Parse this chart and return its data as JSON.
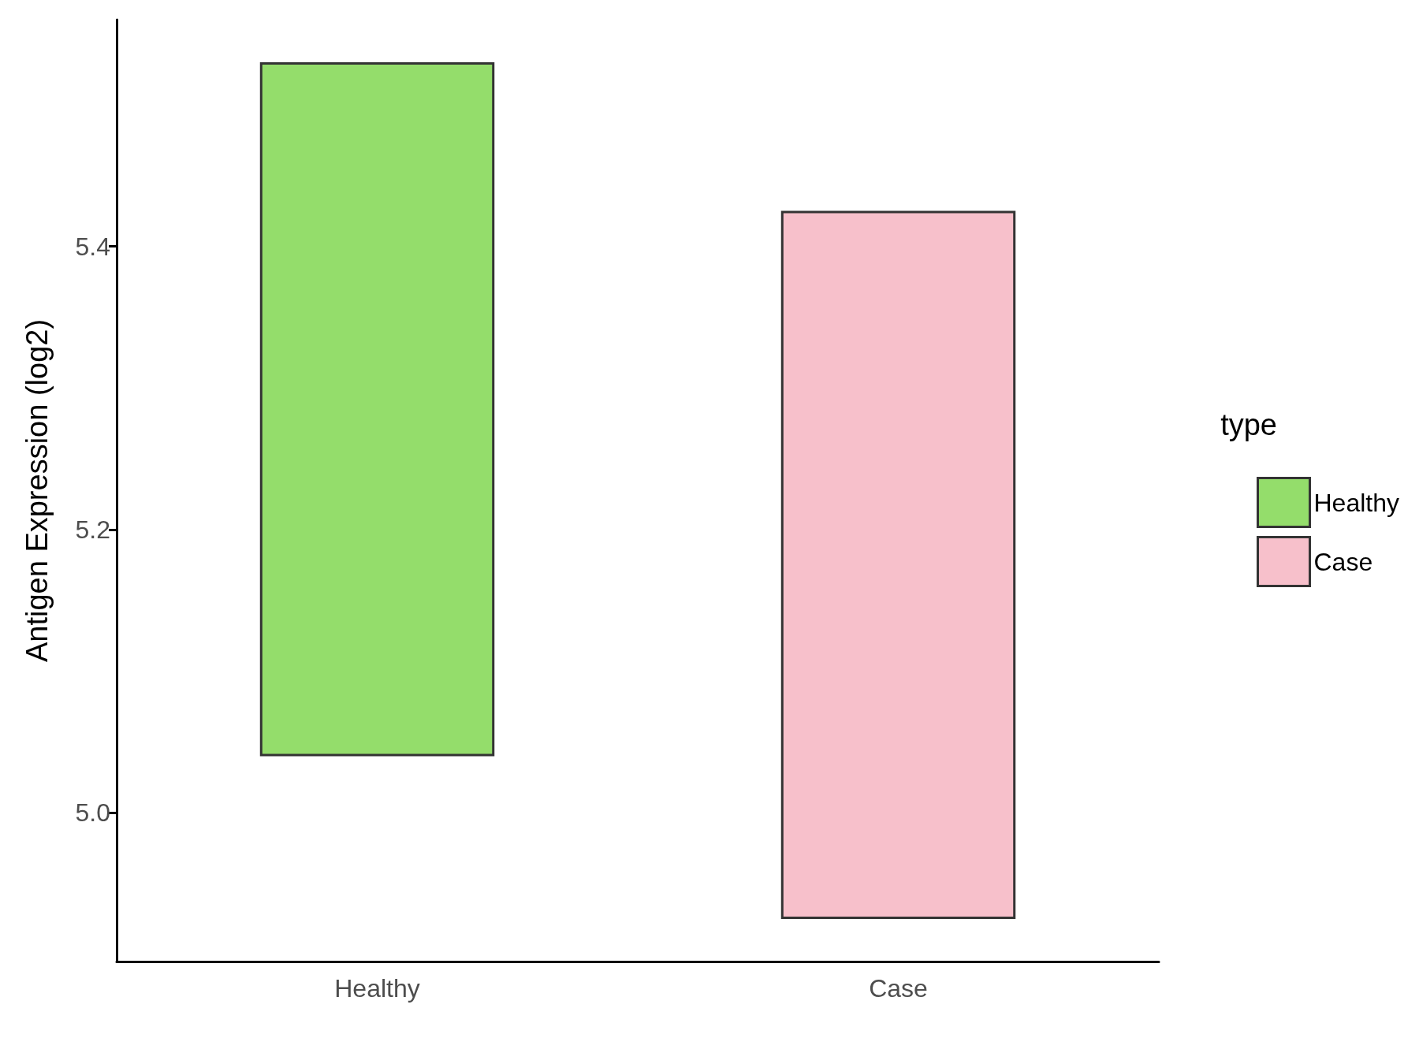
{
  "chart_data": {
    "type": "bar",
    "ylabel": "Antigen Expression (log2)",
    "legend_title": "type",
    "categories": [
      "Healthy",
      "Case"
    ],
    "series": [
      {
        "name": "Healthy",
        "color": "#94dd6b",
        "values": [
          0.49,
          null
        ],
        "base": [
          5.04,
          null
        ]
      },
      {
        "name": "Case",
        "color": "#f7c0cb",
        "values": [
          null,
          0.5
        ],
        "base": [
          null,
          4.925
        ]
      }
    ],
    "ylim": [
      4.895,
      5.56
    ],
    "yticks": [
      {
        "value": 5.0,
        "label": "5.0"
      },
      {
        "value": 5.2,
        "label": "5.2"
      },
      {
        "value": 5.4,
        "label": "5.4"
      }
    ],
    "grid": false,
    "legend": "right"
  }
}
